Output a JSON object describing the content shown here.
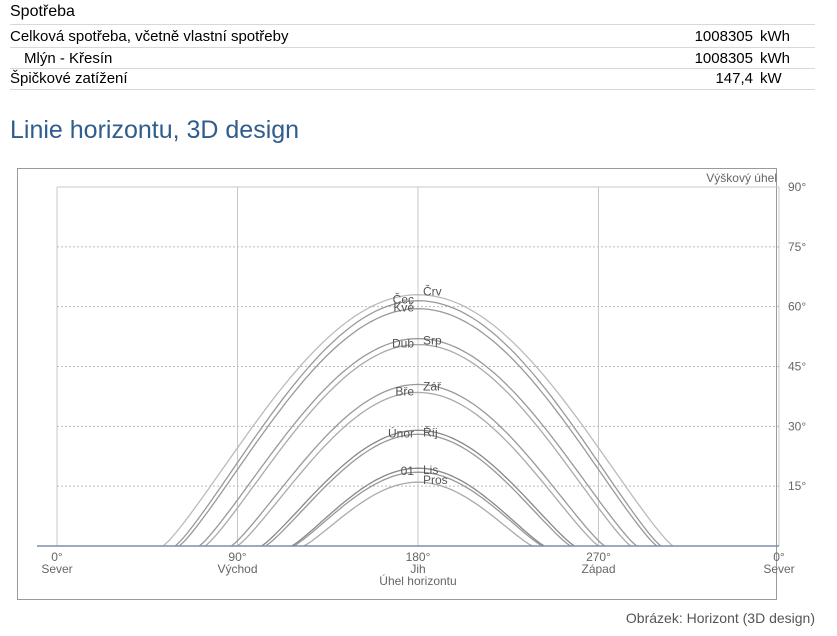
{
  "consumption": {
    "heading": "Spotřeba",
    "rows": [
      {
        "label": "Celková spotřeba, včetně vlastní spotřeby",
        "value": "1008305",
        "unit": "kWh"
      },
      {
        "label": "Mlýn - Křesín",
        "value": "1008305",
        "unit": "kWh"
      },
      {
        "label": "Špičkové zatížení",
        "value": "147,4",
        "unit": "kW"
      }
    ]
  },
  "section_title": "Linie horizontu, 3D design",
  "caption": "Obrázek: Horizont (3D design)",
  "chart_data": {
    "type": "line",
    "title": "",
    "xlabel": "Úhel horizontu",
    "ylabel": "Výškový úhel",
    "xlim": [
      0,
      360
    ],
    "ylim": [
      0,
      90
    ],
    "grid": true,
    "x_ticks": [
      {
        "value": 0,
        "deg": "0°",
        "name": "Sever"
      },
      {
        "value": 90,
        "deg": "90°",
        "name": "Východ"
      },
      {
        "value": 180,
        "deg": "180°",
        "name": "Jih"
      },
      {
        "value": 270,
        "deg": "270°",
        "name": "Západ"
      },
      {
        "value": 360,
        "deg": "0°",
        "name": "Sever"
      }
    ],
    "y_ticks": [
      {
        "value": 15,
        "label": "15°"
      },
      {
        "value": 30,
        "label": "30°"
      },
      {
        "value": 45,
        "label": "45°"
      },
      {
        "value": 60,
        "label": "60°"
      },
      {
        "value": 75,
        "label": "75°"
      },
      {
        "value": 90,
        "label": "90°"
      }
    ],
    "series": [
      {
        "name": "Čec",
        "peak": 61.5,
        "rise": 59,
        "set": 301,
        "color": "#999999"
      },
      {
        "name": "Črv",
        "peak": 63,
        "rise": 53,
        "set": 307,
        "color": "#bbbbbb"
      },
      {
        "name": "Kvě",
        "peak": 59.5,
        "rise": 61,
        "set": 299,
        "color": "#999999"
      },
      {
        "name": "Srp",
        "peak": 52,
        "rise": 71,
        "set": 289,
        "color": "#999999"
      },
      {
        "name": "Dub",
        "peak": 50.5,
        "rise": 74,
        "set": 286,
        "color": "#aaaaaa"
      },
      {
        "name": "Zář",
        "peak": 40.5,
        "rise": 87,
        "set": 273,
        "color": "#999999"
      },
      {
        "name": "Bře",
        "peak": 38.5,
        "rise": 90,
        "set": 270,
        "color": "#aaaaaa"
      },
      {
        "name": "Říj",
        "peak": 29,
        "rise": 102,
        "set": 258,
        "color": "#888888"
      },
      {
        "name": "Únor",
        "peak": 28,
        "rise": 104,
        "set": 256,
        "color": "#999999"
      },
      {
        "name": "Lis",
        "peak": 19.5,
        "rise": 117,
        "set": 243,
        "color": "#888888"
      },
      {
        "name": "01",
        "peak": 18.5,
        "rise": 118,
        "set": 242,
        "color": "#999999"
      },
      {
        "name": "Pros",
        "peak": 16,
        "rise": 123,
        "set": 237,
        "color": "#aaaaaa"
      }
    ]
  }
}
